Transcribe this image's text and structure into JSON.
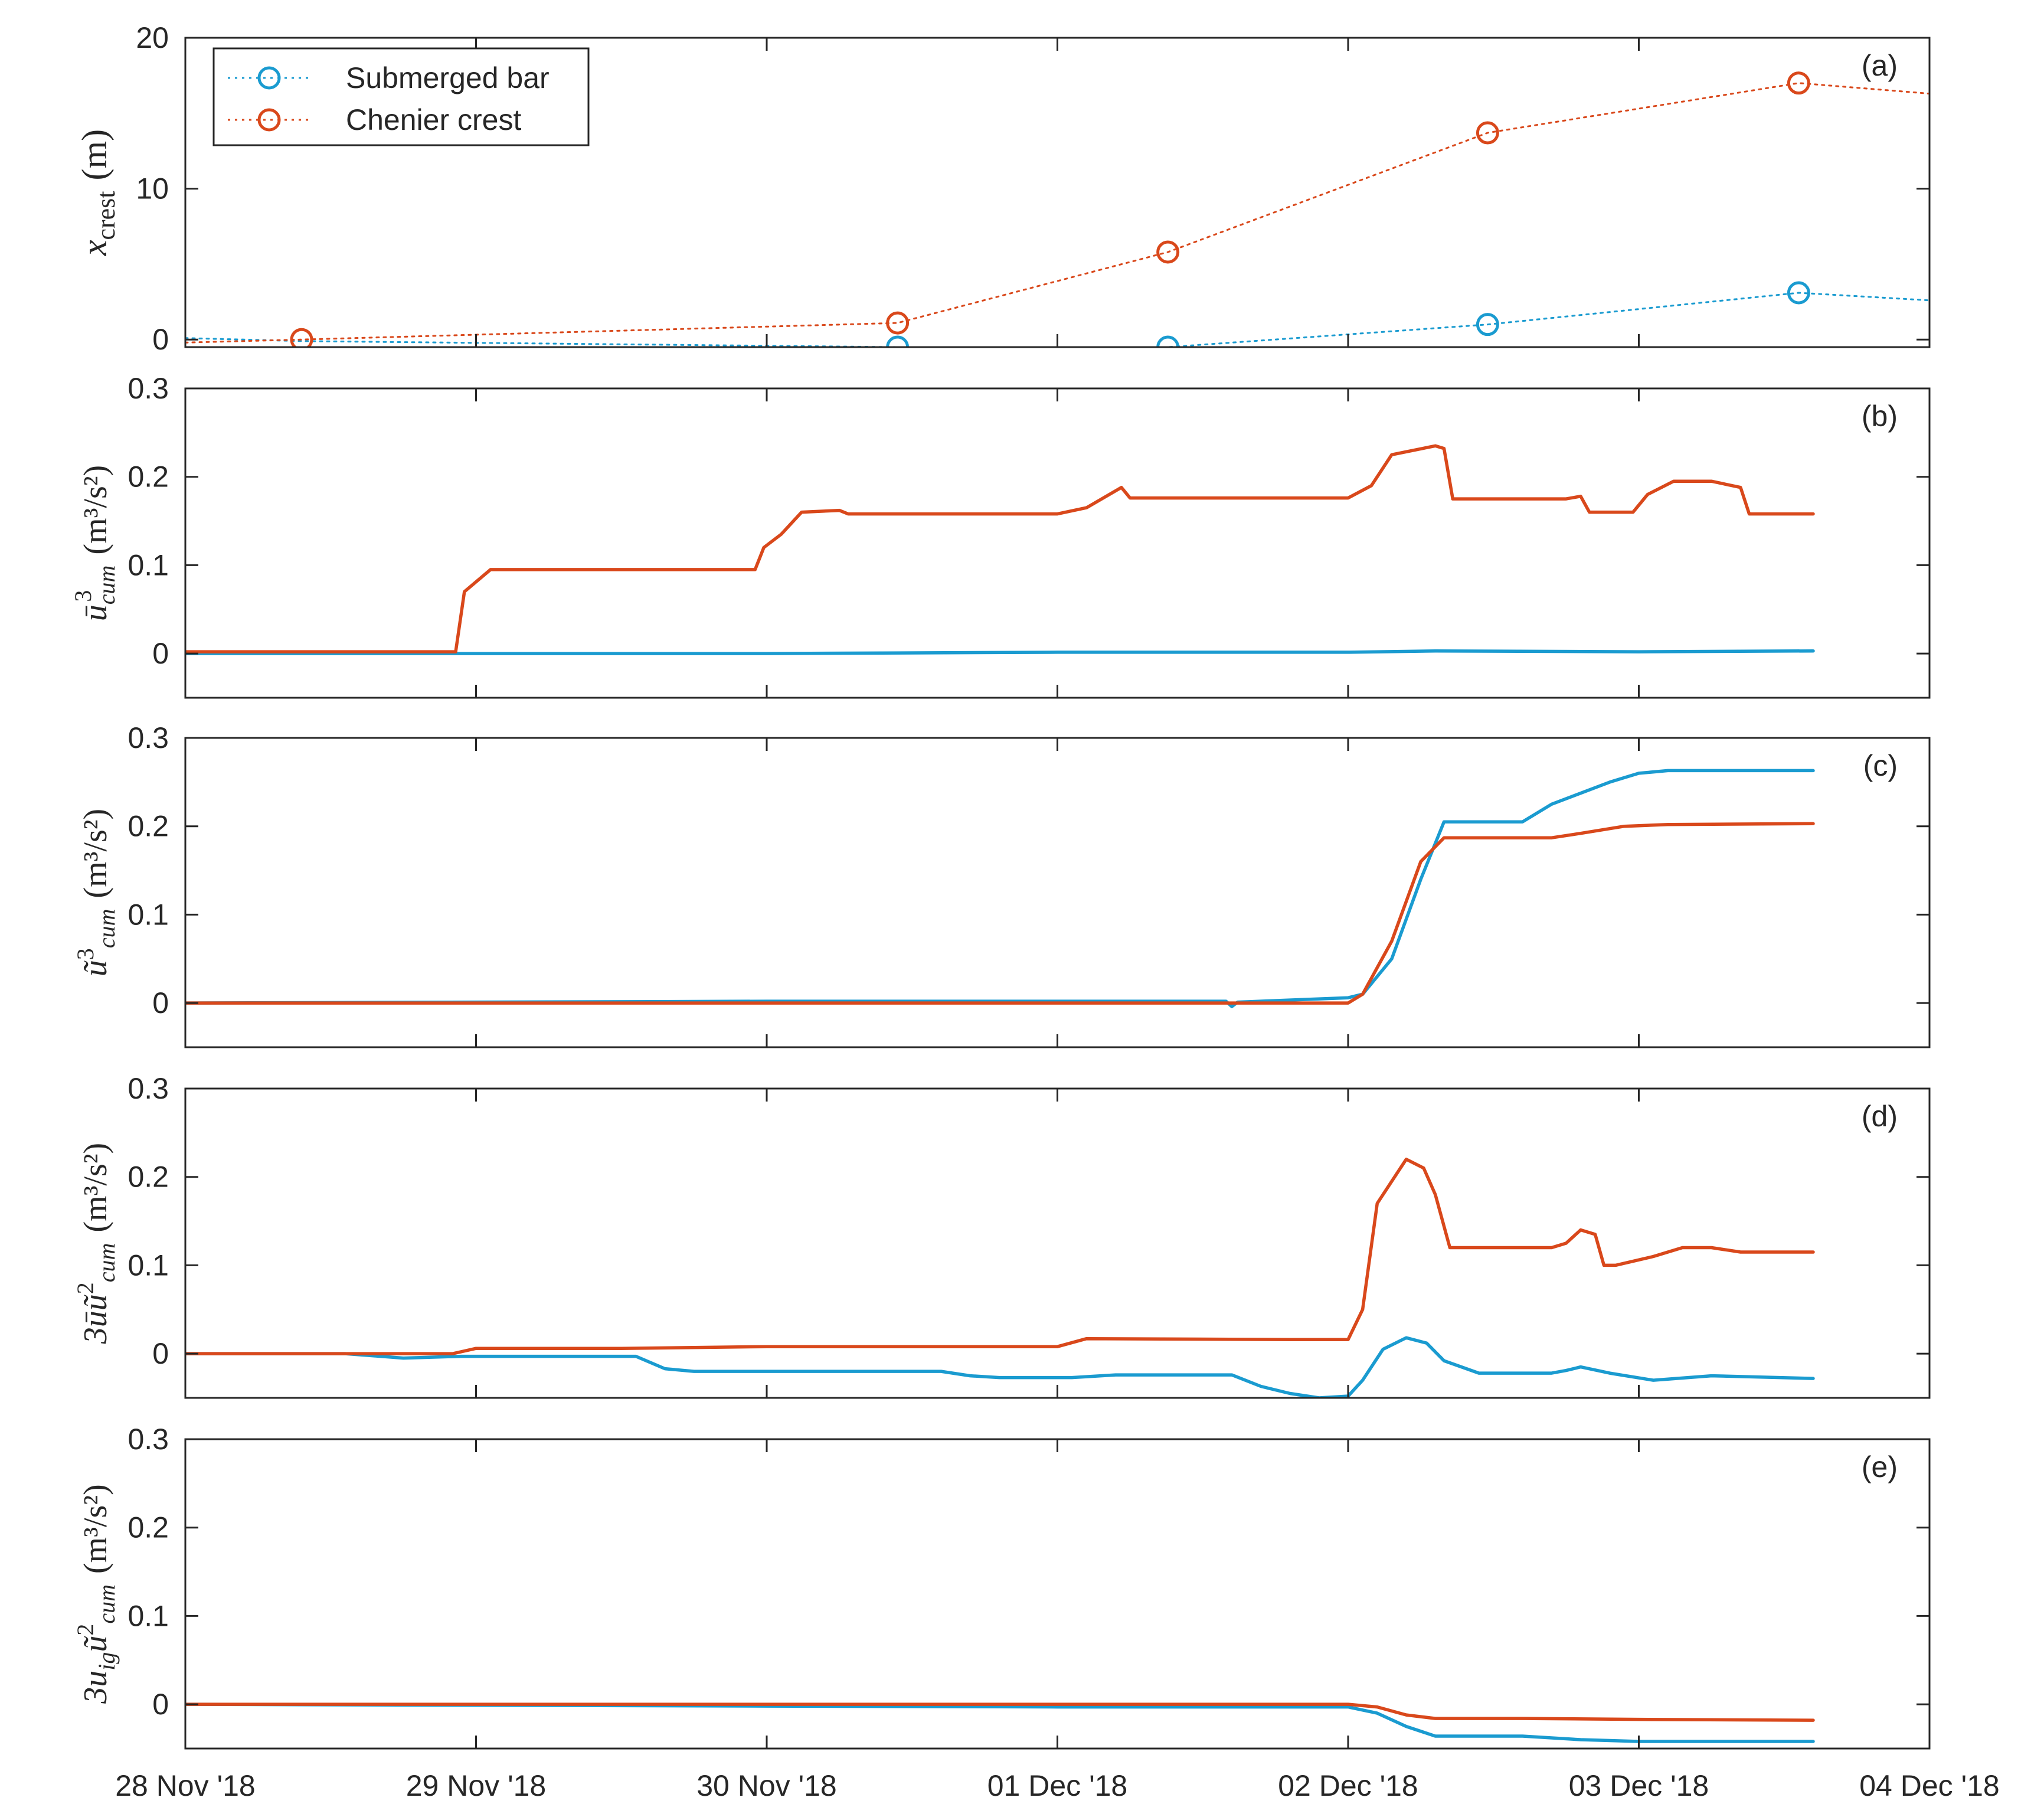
{
  "x_ticks": [
    "28 Nov '18",
    "29 Nov '18",
    "30 Nov '18",
    "01 Dec '18",
    "02 Dec '18",
    "03 Dec '18",
    "04 Dec '18"
  ],
  "colors": {
    "blue": "#1a9bd0",
    "orange": "#d9481b",
    "axis": "#262626"
  },
  "chart_data": [
    {
      "type": "line",
      "panel": "(a)",
      "ylabel": "x_crest (m)",
      "ylabel_main": "x",
      "ylabel_sub": "crest",
      "ylabel_unit": "(m)",
      "xlim": [
        0,
        6
      ],
      "ylim": [
        -0.5,
        20
      ],
      "y_ticks": [
        0,
        10,
        20
      ],
      "y_tick_labels": [
        "0",
        "10",
        "20"
      ],
      "legend": {
        "position": "top-left",
        "entries": [
          "Submerged bar",
          "Chenier crest"
        ]
      },
      "series": [
        {
          "name": "Submerged bar",
          "color": "#1a9bd0",
          "style": "dotted",
          "x": [
            0,
            0.4,
            2.45,
            3.38,
            4.48,
            5.55,
            6.0
          ],
          "y": [
            0.1,
            -0.1,
            -0.5,
            -0.5,
            1.0,
            3.1,
            2.6
          ],
          "markers": [
            2.45,
            3.38,
            4.48,
            5.55
          ]
        },
        {
          "name": "Chenier crest",
          "color": "#d9481b",
          "style": "dotted",
          "x": [
            0,
            0.4,
            2.45,
            3.38,
            4.48,
            5.55,
            6.0
          ],
          "y": [
            -0.2,
            0.0,
            1.1,
            5.8,
            13.7,
            17.0,
            16.3
          ],
          "markers": [
            0.4,
            2.45,
            3.38,
            4.48,
            5.55
          ]
        }
      ]
    },
    {
      "type": "line",
      "panel": "(b)",
      "ylabel": "ū³_cum (m³/s²)",
      "ylim": [
        -0.05,
        0.3
      ],
      "y_ticks": [
        0,
        0.1,
        0.2,
        0.3
      ],
      "y_tick_labels": [
        "0",
        "0.1",
        "0.2",
        "0.3"
      ],
      "series": [
        {
          "name": "Submerged bar",
          "color": "#1a9bd0",
          "x": [
            0,
            2.0,
            3.0,
            4.0,
            4.3,
            5.0,
            5.6
          ],
          "y": [
            0,
            0,
            0.0015,
            0.0015,
            0.003,
            0.002,
            0.003
          ]
        },
        {
          "name": "Chenier crest",
          "color": "#d9481b",
          "x": [
            0,
            0.93,
            0.96,
            1.05,
            1.6,
            1.96,
            1.99,
            2.05,
            2.12,
            2.25,
            2.28,
            2.9,
            3.0,
            3.1,
            3.22,
            3.25,
            4.0,
            4.08,
            4.15,
            4.3,
            4.33,
            4.36,
            4.75,
            4.8,
            4.83,
            4.98,
            5.03,
            5.12,
            5.25,
            5.35,
            5.38,
            5.6
          ],
          "y": [
            0.002,
            0.002,
            0.07,
            0.095,
            0.095,
            0.095,
            0.12,
            0.135,
            0.16,
            0.162,
            0.158,
            0.158,
            0.158,
            0.165,
            0.188,
            0.176,
            0.176,
            0.19,
            0.225,
            0.235,
            0.232,
            0.175,
            0.175,
            0.178,
            0.16,
            0.16,
            0.18,
            0.195,
            0.195,
            0.188,
            0.158,
            0.158
          ]
        }
      ]
    },
    {
      "type": "line",
      "panel": "(c)",
      "ylabel": "ũ³_cum (m³/s²)",
      "ylim": [
        -0.05,
        0.3
      ],
      "y_ticks": [
        0,
        0.1,
        0.2,
        0.3
      ],
      "y_tick_labels": [
        "0",
        "0.1",
        "0.2",
        "0.3"
      ],
      "series": [
        {
          "name": "Submerged bar",
          "color": "#1a9bd0",
          "x": [
            0,
            1.0,
            2.0,
            3.0,
            3.58,
            3.6,
            3.62,
            4.0,
            4.05,
            4.15,
            4.25,
            4.33,
            4.6,
            4.7,
            4.9,
            5.0,
            5.1,
            5.6
          ],
          "y": [
            0,
            0.001,
            0.002,
            0.002,
            0.002,
            -0.004,
            0.001,
            0.006,
            0.01,
            0.05,
            0.14,
            0.205,
            0.205,
            0.225,
            0.25,
            0.26,
            0.263,
            0.263
          ]
        },
        {
          "name": "Chenier crest",
          "color": "#d9481b",
          "x": [
            0,
            3.6,
            4.0,
            4.05,
            4.15,
            4.25,
            4.33,
            4.7,
            4.8,
            4.95,
            5.1,
            5.6
          ],
          "y": [
            0,
            0,
            0,
            0.01,
            0.07,
            0.16,
            0.187,
            0.187,
            0.192,
            0.2,
            0.202,
            0.203
          ]
        }
      ]
    },
    {
      "type": "line",
      "panel": "(d)",
      "ylabel": "3ū ũ²_cum (m³/s²)",
      "ylim": [
        -0.05,
        0.3
      ],
      "y_ticks": [
        0,
        0.1,
        0.2,
        0.3
      ],
      "y_tick_labels": [
        "0",
        "0.1",
        "0.2",
        "0.3"
      ],
      "series": [
        {
          "name": "Submerged bar",
          "color": "#1a9bd0",
          "x": [
            0,
            0.55,
            0.75,
            0.95,
            1.55,
            1.65,
            1.75,
            2.6,
            2.7,
            2.8,
            3.05,
            3.2,
            3.6,
            3.7,
            3.8,
            3.9,
            4.0,
            4.05,
            4.12,
            4.2,
            4.27,
            4.33,
            4.45,
            4.7,
            4.75,
            4.8,
            4.9,
            5.05,
            5.25,
            5.6
          ],
          "y": [
            0,
            0,
            -0.005,
            -0.003,
            -0.003,
            -0.017,
            -0.02,
            -0.02,
            -0.025,
            -0.027,
            -0.027,
            -0.024,
            -0.024,
            -0.037,
            -0.045,
            -0.05,
            -0.048,
            -0.03,
            0.005,
            0.018,
            0.012,
            -0.008,
            -0.022,
            -0.022,
            -0.019,
            -0.015,
            -0.022,
            -0.03,
            -0.025,
            -0.028
          ]
        },
        {
          "name": "Chenier crest",
          "color": "#d9481b",
          "x": [
            0,
            0.92,
            1.0,
            1.5,
            2.0,
            3.0,
            3.1,
            3.8,
            4.0,
            4.05,
            4.1,
            4.2,
            4.26,
            4.3,
            4.35,
            4.7,
            4.75,
            4.8,
            4.85,
            4.88,
            4.92,
            5.05,
            5.15,
            5.25,
            5.35,
            5.6
          ],
          "y": [
            0,
            0,
            0.006,
            0.006,
            0.008,
            0.008,
            0.017,
            0.016,
            0.016,
            0.05,
            0.17,
            0.22,
            0.21,
            0.18,
            0.12,
            0.12,
            0.125,
            0.14,
            0.135,
            0.1,
            0.1,
            0.11,
            0.12,
            0.12,
            0.115,
            0.115
          ]
        }
      ]
    },
    {
      "type": "line",
      "panel": "(e)",
      "ylabel": "3u_ig ũ²_cum (m³/s²)",
      "ylim": [
        -0.05,
        0.3
      ],
      "y_ticks": [
        0,
        0.1,
        0.2,
        0.3
      ],
      "y_tick_labels": [
        "0",
        "0.1",
        "0.2",
        "0.3"
      ],
      "series": [
        {
          "name": "Submerged bar",
          "color": "#1a9bd0",
          "x": [
            0,
            1.0,
            2.0,
            3.0,
            3.6,
            4.0,
            4.1,
            4.2,
            4.3,
            4.6,
            4.8,
            5.0,
            5.6
          ],
          "y": [
            0,
            -0.001,
            -0.002,
            -0.003,
            -0.003,
            -0.003,
            -0.01,
            -0.025,
            -0.036,
            -0.036,
            -0.04,
            -0.042,
            -0.042
          ]
        },
        {
          "name": "Chenier crest",
          "color": "#d9481b",
          "x": [
            0,
            4.0,
            4.1,
            4.2,
            4.3,
            4.6,
            5.0,
            5.6
          ],
          "y": [
            0,
            0,
            -0.003,
            -0.012,
            -0.016,
            -0.016,
            -0.017,
            -0.018
          ]
        }
      ]
    }
  ]
}
